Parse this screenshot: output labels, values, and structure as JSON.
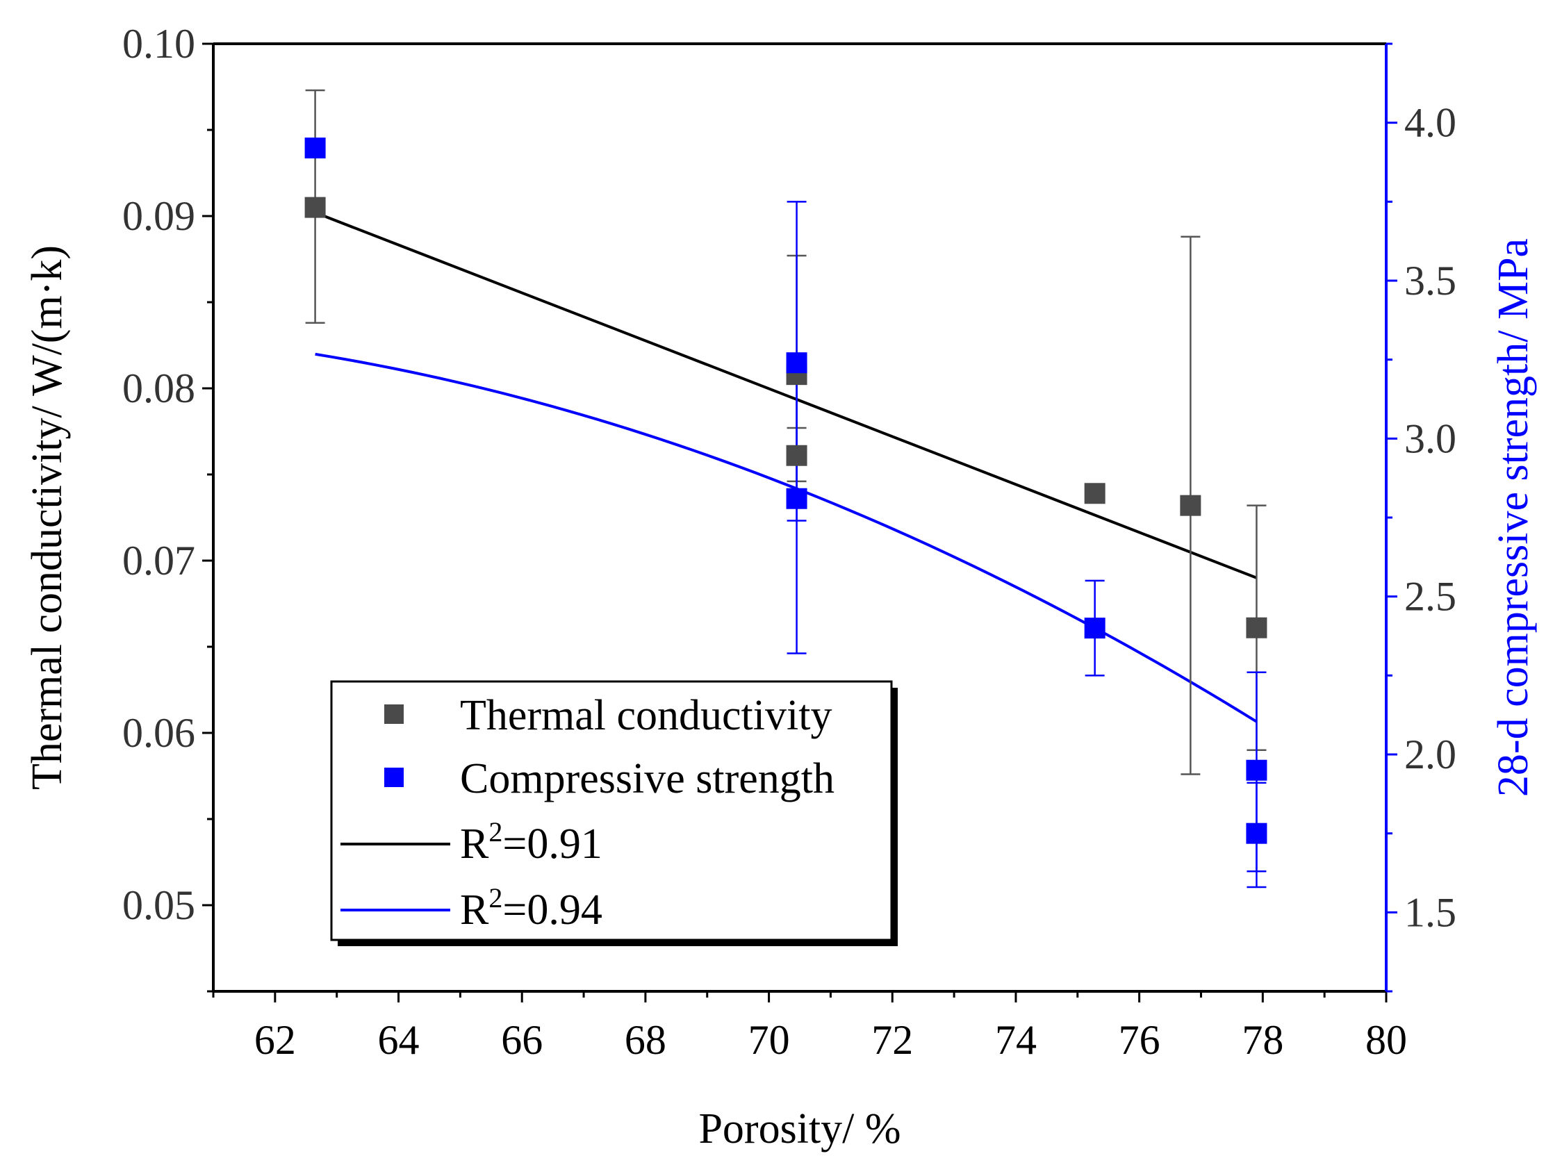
{
  "chart_data": {
    "type": "scatter",
    "title": "",
    "xlabel": "Porosity/ %",
    "ylabel": "Thermal conductivity/ W/(m·k)",
    "y2label": "28-d compressive strength/ MPa",
    "xlim": [
      61,
      80
    ],
    "ylim": [
      0.045,
      0.1
    ],
    "y2lim": [
      1.25,
      4.25
    ],
    "x_ticks": [
      62,
      64,
      66,
      68,
      70,
      72,
      74,
      76,
      78,
      80
    ],
    "y_ticks": [
      0.05,
      0.06,
      0.07,
      0.08,
      0.09,
      0.1
    ],
    "y2_ticks": [
      1.5,
      2.0,
      2.5,
      3.0,
      3.5,
      4.0
    ],
    "x_tick_labels": [
      "62",
      "64",
      "66",
      "68",
      "70",
      "72",
      "74",
      "76",
      "78",
      "80"
    ],
    "y_tick_labels": [
      "0.05",
      "0.06",
      "0.07",
      "0.08",
      "0.09",
      "0.10"
    ],
    "y2_tick_labels": [
      "1.5",
      "2.0",
      "2.5",
      "3.0",
      "3.5",
      "4.0"
    ],
    "series": [
      {
        "name": "Thermal conductivity",
        "axis": "left",
        "color": "#4a4a4a",
        "points": [
          {
            "x": 62.65,
            "y": 0.0905,
            "err_low": 0.0838,
            "err_high": 0.0973
          },
          {
            "x": 70.45,
            "y": 0.0808,
            "err_low": 0.0739,
            "err_high": 0.0877
          },
          {
            "x": 70.45,
            "y": 0.0761,
            "err_low": 0.0746,
            "err_high": 0.0777
          },
          {
            "x": 75.28,
            "y": 0.0739,
            "err_low": null,
            "err_high": null
          },
          {
            "x": 76.83,
            "y": 0.0732,
            "err_low": 0.0576,
            "err_high": 0.0888
          },
          {
            "x": 77.9,
            "y": 0.0661,
            "err_low": 0.059,
            "err_high": 0.0732
          }
        ]
      },
      {
        "name": "Compressive strength",
        "axis": "right",
        "color": "#0000ff",
        "points": [
          {
            "x": 62.65,
            "y": 3.92,
            "err_low": null,
            "err_high": null
          },
          {
            "x": 70.45,
            "y": 3.24,
            "err_low": 2.74,
            "err_high": 3.75
          },
          {
            "x": 70.45,
            "y": 2.81,
            "err_low": 2.32,
            "err_high": 3.27
          },
          {
            "x": 75.28,
            "y": 2.4,
            "err_low": 2.25,
            "err_high": 2.55
          },
          {
            "x": 77.9,
            "y": 1.95,
            "err_low": 1.63,
            "err_high": 2.26
          },
          {
            "x": 77.9,
            "y": 1.75,
            "err_low": 1.58,
            "err_high": 1.91
          }
        ]
      }
    ],
    "fits": [
      {
        "name": "R2=0.91",
        "label_base": "R",
        "label_sup": "2",
        "label_rest": "=0.91",
        "axis": "left",
        "color": "#000000",
        "kind": "linear",
        "x_start": 62.65,
        "x_end": 77.9,
        "y_start": 0.0902,
        "y_end": 0.069
      },
      {
        "name": "R2=0.94",
        "label_base": "R",
        "label_sup": "2",
        "label_rest": "=0.94",
        "axis": "right",
        "color": "#0000ff",
        "kind": "quadratic",
        "x_start": 62.65,
        "x_end": 77.9,
        "coeffs": [
          -6.16,
          0.33285,
          -0.002911
        ]
      }
    ],
    "legend": {
      "position": "lower-left",
      "entries": [
        "Thermal conductivity",
        "Compressive strength",
        "R2=0.91",
        "R2=0.94"
      ]
    }
  }
}
